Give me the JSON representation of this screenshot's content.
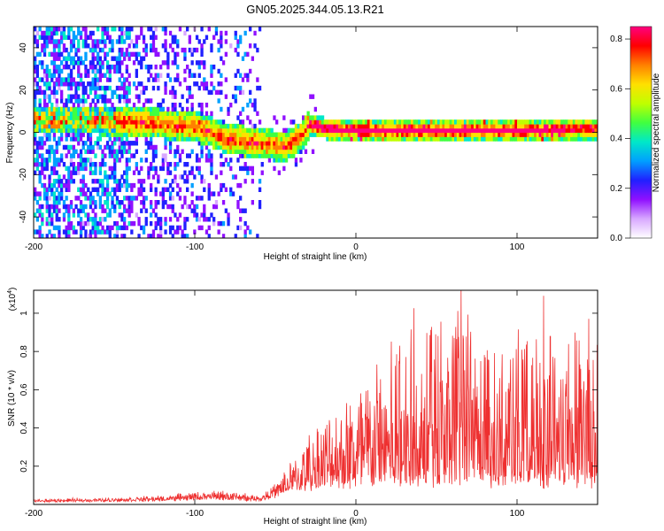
{
  "chart_data": [
    {
      "type": "heatmap",
      "title": "GN05.2025.344.05.13.R21",
      "xlabel": "Height of straight line (km)",
      "ylabel": "Frequency (Hz)",
      "xlim": [
        -200,
        150
      ],
      "ylim": [
        -50,
        50
      ],
      "xticks": [
        -200,
        -100,
        0,
        100
      ],
      "yticks": [
        -40,
        -20,
        0,
        20,
        40
      ],
      "colorbar": {
        "label": "Normalized spectral amplitude",
        "range": [
          0,
          0.85
        ],
        "ticks": [
          0.0,
          0.2,
          0.4,
          0.6,
          0.8
        ],
        "tick_labels": [
          "0.0",
          "0.2",
          "0.4",
          "0.6",
          "0.8"
        ],
        "colors": [
          "#ffffff",
          "#d8a8ff",
          "#9010ff",
          "#2020ff",
          "#00a0ff",
          "#00e8c8",
          "#40ff40",
          "#c0ff00",
          "#ffe000",
          "#ff8000",
          "#ff0000",
          "#ff0080"
        ]
      },
      "ridge": {
        "description_points_x": [
          -160,
          -140,
          -120,
          -100,
          -80,
          -60,
          -45,
          -35,
          -30,
          -20,
          0,
          50,
          100,
          150
        ],
        "description_points_y": [
          5,
          4,
          3,
          2,
          -4,
          -6,
          -8,
          -3,
          3,
          1,
          0,
          0,
          0,
          1
        ]
      }
    },
    {
      "type": "line",
      "xlabel": "Height of straight line (km)",
      "ylabel": "SNR (10 * v/v)",
      "yscale_label": "(x10",
      "yscale_exp": "4",
      "xlim": [
        -200,
        150
      ],
      "ylim": [
        0.0,
        1.12
      ],
      "xticks": [
        -200,
        -100,
        0,
        100
      ],
      "yticks": [
        0.2,
        0.4,
        0.6,
        0.8,
        1.0
      ],
      "ytick_labels": [
        "0.2",
        "0.4",
        "0.6",
        "0.8",
        "1"
      ],
      "color": "#ee3030",
      "envelope": {
        "x": [
          -200,
          -150,
          -120,
          -100,
          -80,
          -60,
          -50,
          -40,
          -30,
          -20,
          -10,
          0,
          20,
          40,
          60,
          80,
          100,
          120,
          150
        ],
        "base": [
          0.02,
          0.025,
          0.03,
          0.04,
          0.04,
          0.03,
          0.06,
          0.1,
          0.12,
          0.14,
          0.15,
          0.15,
          0.16,
          0.16,
          0.16,
          0.16,
          0.16,
          0.16,
          0.16
        ],
        "peak": [
          0.03,
          0.04,
          0.05,
          0.07,
          0.08,
          0.05,
          0.12,
          0.25,
          0.4,
          0.5,
          0.6,
          0.65,
          0.9,
          1.0,
          1.0,
          0.95,
          0.9,
          1.0,
          0.95
        ]
      }
    }
  ]
}
